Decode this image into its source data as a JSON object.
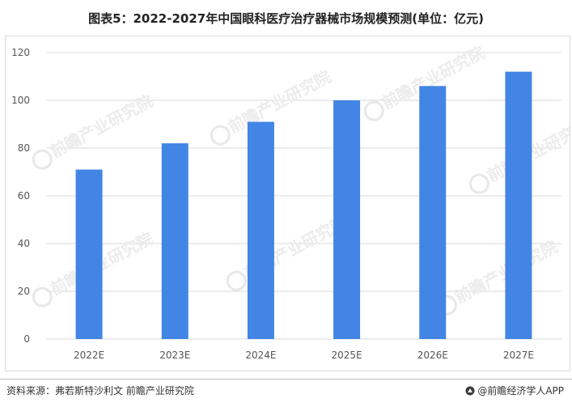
{
  "title": "图表5：2022-2027年中国眼科医疗治疗器械市场规模预测(单位：亿元)",
  "source": "资料来源：弗若斯特沙利文 前瞻产业研究院",
  "brand": "@前瞻经济学人APP",
  "watermark": "前瞻产业研究院",
  "colors": {
    "bar": "#4285E4",
    "grid": "#d9d9d9",
    "axis_text": "#555555"
  },
  "chart_data": {
    "type": "bar",
    "categories": [
      "2022E",
      "2023E",
      "2024E",
      "2025E",
      "2026E",
      "2027E"
    ],
    "values": [
      71,
      82,
      91,
      100,
      106,
      112
    ],
    "ylim": [
      0,
      120
    ],
    "yticks": [
      0,
      20,
      40,
      60,
      80,
      100,
      120
    ],
    "grid": true,
    "legend": "none"
  }
}
